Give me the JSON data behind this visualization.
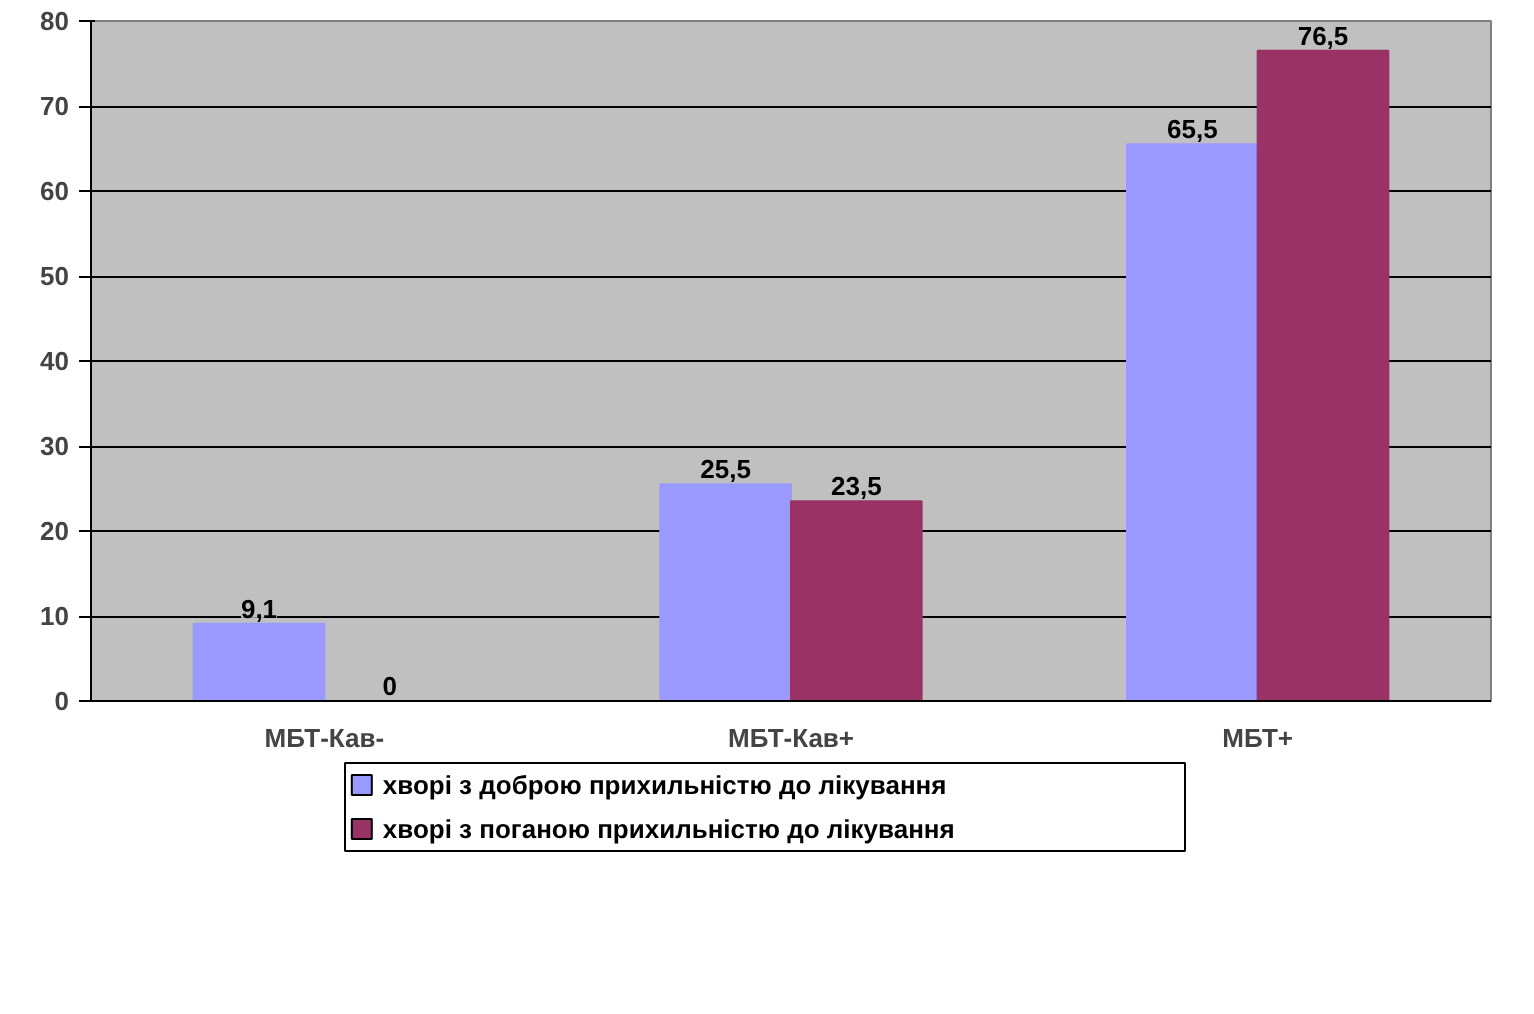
{
  "chart_data": {
    "type": "bar",
    "categories": [
      "МБТ-Кав-",
      "МБТ-Кав+",
      "МБТ+"
    ],
    "series": [
      {
        "name": "хворі з доброю прихильністю до лікування",
        "color": "#9999ff",
        "values": [
          9.1,
          25.5,
          65.5
        ],
        "value_labels": [
          "9,1",
          "25,5",
          "65,5"
        ]
      },
      {
        "name": "хворі з поганою прихильністю до лікування",
        "color": "#993366",
        "values": [
          0,
          23.5,
          76.5
        ],
        "value_labels": [
          "0",
          "23,5",
          "76,5"
        ]
      }
    ],
    "ylim": [
      0,
      80
    ],
    "yticks": [
      0,
      10,
      20,
      30,
      40,
      50,
      60,
      70,
      80
    ],
    "grid": "y",
    "legend": "bottom"
  }
}
